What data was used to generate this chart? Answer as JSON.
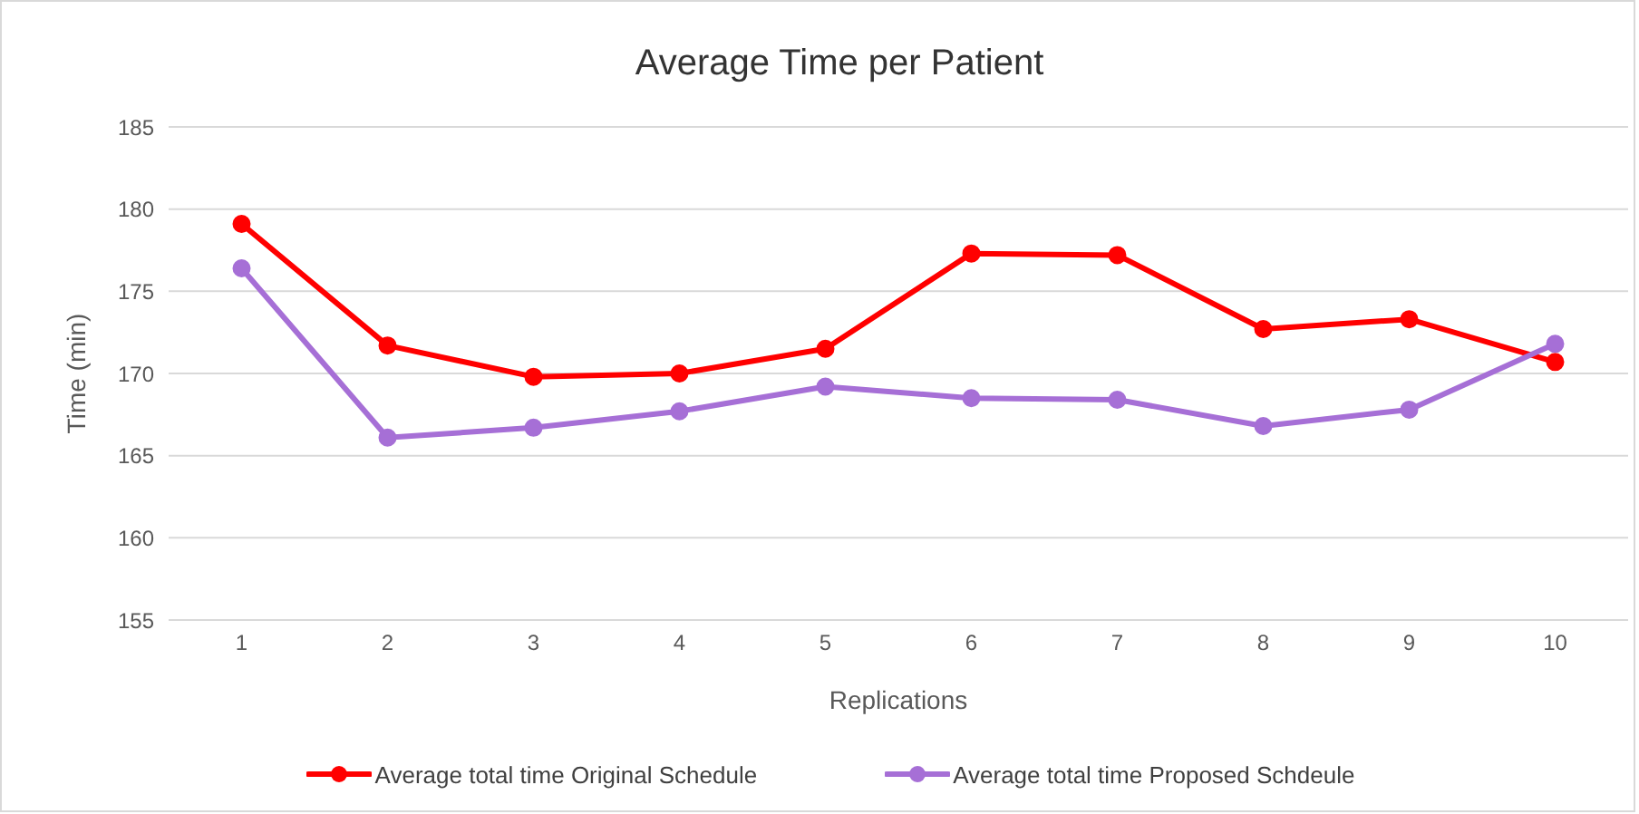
{
  "chart_data": {
    "type": "line",
    "title": "Average Time per Patient",
    "xlabel": "Replications",
    "ylabel": "Time (min)",
    "categories": [
      "1",
      "2",
      "3",
      "4",
      "5",
      "6",
      "7",
      "8",
      "9",
      "10"
    ],
    "series": [
      {
        "name": "Average total time Original Schedule",
        "color": "#ff0000",
        "values": [
          179.1,
          171.7,
          169.8,
          170.0,
          171.5,
          177.3,
          177.2,
          172.7,
          173.3,
          170.7
        ]
      },
      {
        "name": "Average total time Proposed Schdeule",
        "color": "#a66fd6",
        "values": [
          176.4,
          166.1,
          166.7,
          167.7,
          169.2,
          168.5,
          168.4,
          166.8,
          167.8,
          171.8
        ]
      }
    ],
    "ylim": [
      155,
      185
    ],
    "yticks": [
      155,
      160,
      165,
      170,
      175,
      180,
      185
    ],
    "grid": "y",
    "legend": "bottom",
    "marker": "circle",
    "line_style": "solid"
  }
}
